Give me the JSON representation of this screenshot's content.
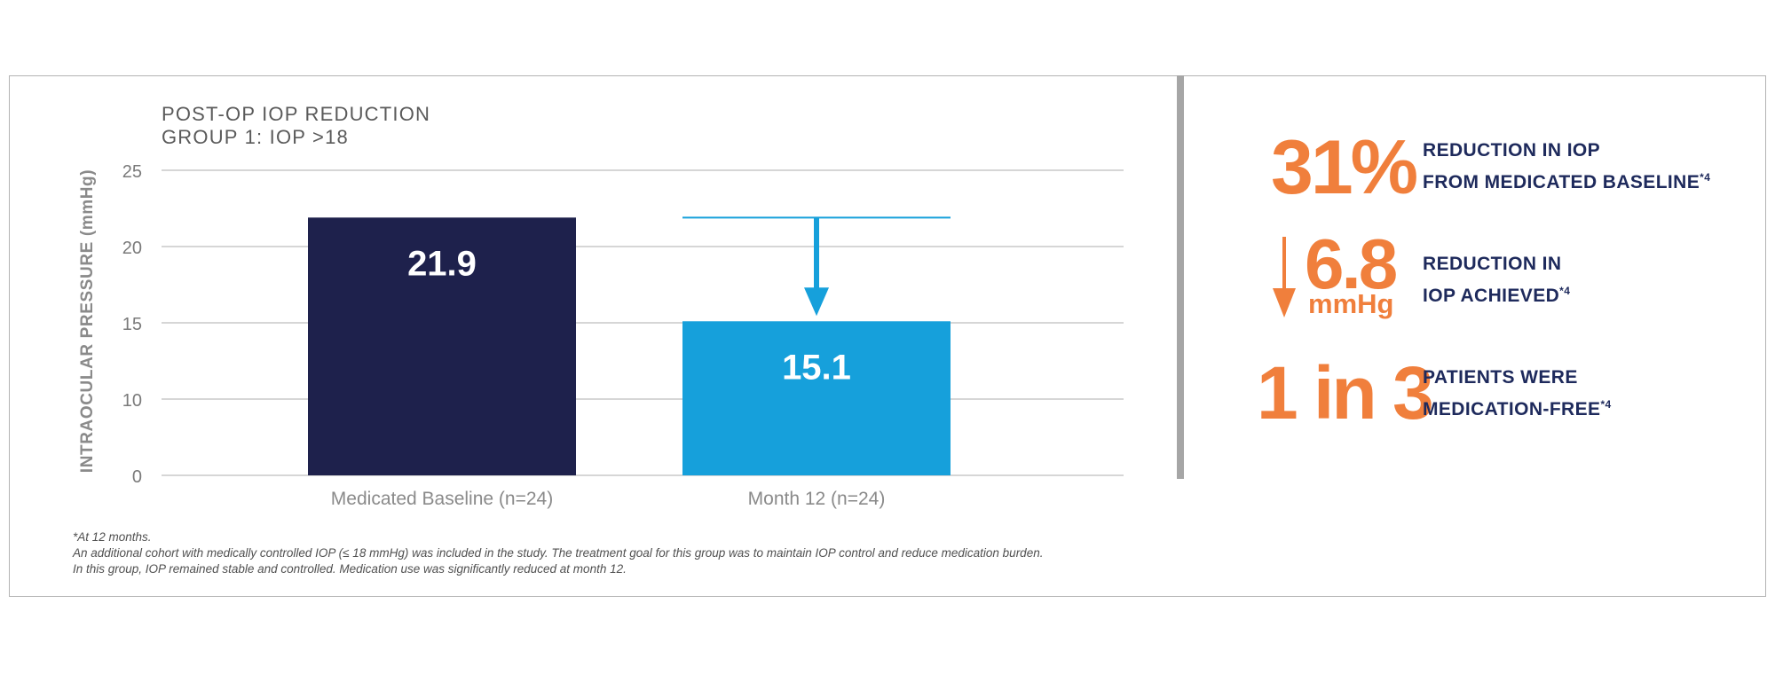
{
  "chart_data": {
    "type": "bar",
    "title": "POST-OP IOP REDUCTION",
    "subtitle": "GROUP 1: IOP >18",
    "ylabel": "INTRAOCULAR PRESSURE  (mmHg)",
    "xlabel": "",
    "categories": [
      "Medicated Baseline (n=24)",
      "Month 12 (n=24)"
    ],
    "values": [
      21.9,
      15.1
    ],
    "value_labels": [
      "21.9",
      "15.1"
    ],
    "yticks": [
      0,
      10,
      15,
      20,
      25
    ],
    "ylim": [
      0,
      25
    ],
    "grid": true,
    "annotation": "arrow from baseline level down to month 12 bar",
    "colors": [
      "#1e214c",
      "#16a0db"
    ]
  },
  "footnotes": {
    "line1": "*At 12 months.",
    "line2": "An additional cohort with medically controlled IOP (≤ 18 mmHg) was included in the study. The treatment goal for this group was to maintain IOP control and reduce medication burden.",
    "line3": "In this group, IOP remained stable and controlled. Medication use was significantly reduced at month 12."
  },
  "stats": [
    {
      "big": "31%",
      "line1": "REDUCTION IN IOP",
      "line2": "FROM MEDICATED BASELINE",
      "sup": "*4"
    },
    {
      "big": "6.8",
      "unit": "mmHg",
      "line1": "REDUCTION IN",
      "line2": "IOP ACHIEVED",
      "sup": "*4"
    },
    {
      "big": "1 in 3",
      "line1": "PATIENTS WERE",
      "line2": "MEDICATION-FREE",
      "sup": "*4"
    }
  ],
  "colors": {
    "accent": "#f07f3c",
    "navy": "#1e2a5c",
    "bar_dark": "#1e214c",
    "bar_light": "#16a0db"
  }
}
